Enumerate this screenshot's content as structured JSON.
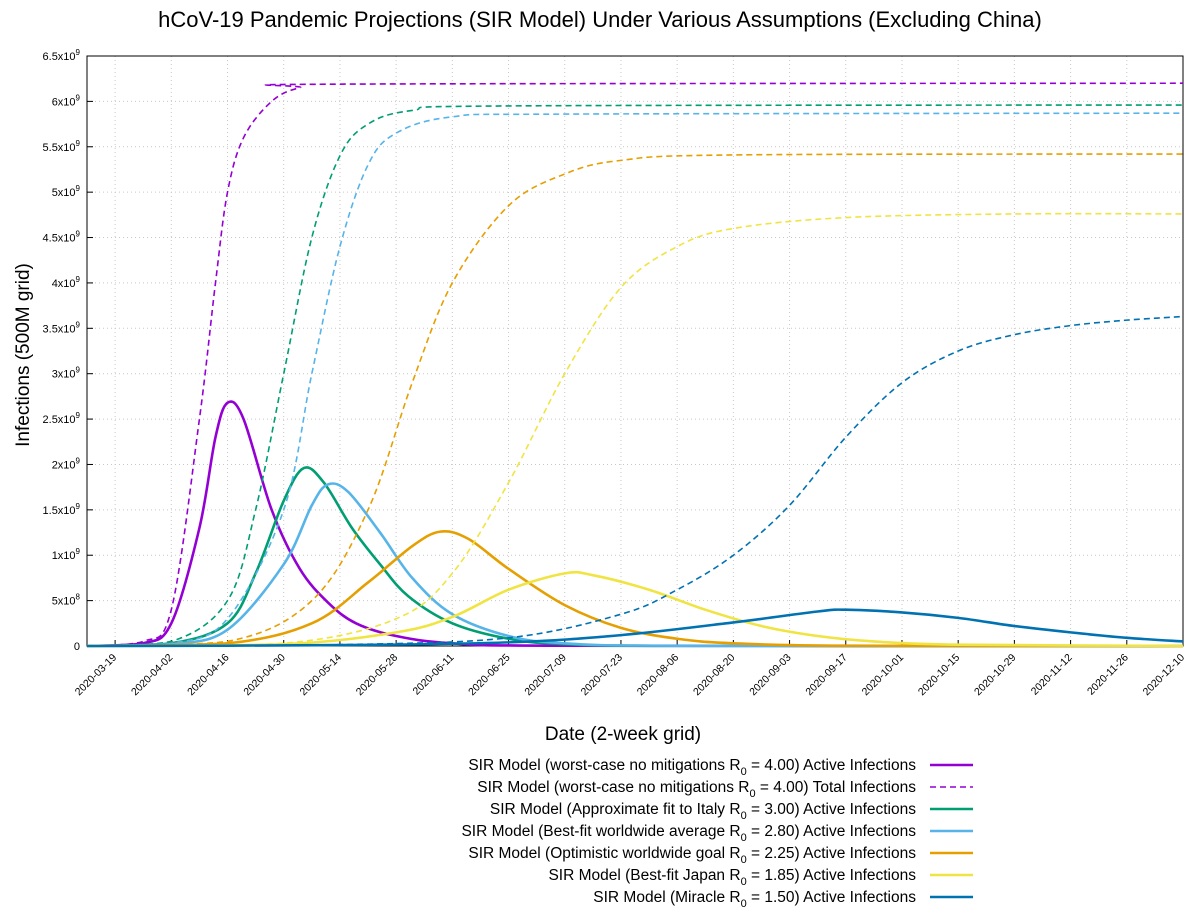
{
  "chart_data": {
    "type": "line",
    "title": "hCoV-19 Pandemic Projections (SIR Model) Under Various Assumptions (Excluding China)",
    "xlabel": "Date (2-week grid)",
    "ylabel": "Infections (500M grid)",
    "xlim": [
      "2020-03-12",
      "2020-12-10"
    ],
    "ylim": [
      0,
      6500000000
    ],
    "grid": true,
    "legend_position": "bottom-center",
    "y_ticks": [
      {
        "value": 0,
        "label": "0"
      },
      {
        "value": 500000000,
        "mant": "5x10",
        "exp": "8"
      },
      {
        "value": 1000000000,
        "mant": "1x10",
        "exp": "9"
      },
      {
        "value": 1500000000,
        "mant": "1.5x10",
        "exp": "9"
      },
      {
        "value": 2000000000,
        "mant": "2x10",
        "exp": "9"
      },
      {
        "value": 2500000000,
        "mant": "2.5x10",
        "exp": "9"
      },
      {
        "value": 3000000000,
        "mant": "3x10",
        "exp": "9"
      },
      {
        "value": 3500000000,
        "mant": "3.5x10",
        "exp": "9"
      },
      {
        "value": 4000000000,
        "mant": "4x10",
        "exp": "9"
      },
      {
        "value": 4500000000,
        "mant": "4.5x10",
        "exp": "9"
      },
      {
        "value": 5000000000,
        "mant": "5x10",
        "exp": "9"
      },
      {
        "value": 5500000000,
        "mant": "5.5x10",
        "exp": "9"
      },
      {
        "value": 6000000000,
        "mant": "6x10",
        "exp": "9"
      },
      {
        "value": 6500000000,
        "mant": "6.5x10",
        "exp": "9"
      }
    ],
    "x_ticks": [
      "2020-03-19",
      "2020-04-02",
      "2020-04-16",
      "2020-04-30",
      "2020-05-14",
      "2020-05-28",
      "2020-06-11",
      "2020-06-25",
      "2020-07-09",
      "2020-07-23",
      "2020-08-06",
      "2020-08-20",
      "2020-09-03",
      "2020-09-17",
      "2020-10-01",
      "2020-10-15",
      "2020-10-29",
      "2020-11-12",
      "2020-11-26",
      "2020-12-10"
    ],
    "series": [
      {
        "name": "worst-case-active",
        "color": "#9400d3",
        "dashed": false,
        "legend_pre": "SIR Model (worst-case no mitigations R",
        "legend_sub": "0",
        "legend_post": " = 4.00) Active Infections",
        "points": [
          [
            "2020-03-12",
            0
          ],
          [
            "2020-03-26",
            30000000
          ],
          [
            "2020-04-02",
            250000000
          ],
          [
            "2020-04-09",
            1300000000
          ],
          [
            "2020-04-13",
            2300000000
          ],
          [
            "2020-04-16",
            2680000000
          ],
          [
            "2020-04-20",
            2500000000
          ],
          [
            "2020-04-27",
            1500000000
          ],
          [
            "2020-05-04",
            850000000
          ],
          [
            "2020-05-11",
            480000000
          ],
          [
            "2020-05-18",
            250000000
          ],
          [
            "2020-05-28",
            110000000
          ],
          [
            "2020-06-11",
            30000000
          ],
          [
            "2020-07-09",
            3000000
          ],
          [
            "2020-12-10",
            0
          ]
        ]
      },
      {
        "name": "worst-case-total",
        "color": "#9400d3",
        "dashed": true,
        "legend_pre": "SIR Model (worst-case no mitigations R",
        "legend_sub": "0",
        "legend_post": " = 4.00) Total Infections",
        "points": [
          [
            "2020-03-12",
            0
          ],
          [
            "2020-03-26",
            50000000
          ],
          [
            "2020-04-02",
            400000000
          ],
          [
            "2020-04-09",
            2500000000
          ],
          [
            "2020-04-13",
            4000000000
          ],
          [
            "2020-04-16",
            5000000000
          ],
          [
            "2020-04-20",
            5600000000
          ],
          [
            "2020-04-27",
            6000000000
          ],
          [
            "2020-05-04",
            6150000000
          ],
          [
            "2020-05-14",
            6190000000
          ],
          [
            "2020-12-10",
            6200000000
          ]
        ]
      },
      {
        "name": "italy-active",
        "color": "#009e73",
        "dashed": false,
        "legend_pre": "SIR Model (Approximate fit to Italy R",
        "legend_sub": "0",
        "legend_post": " = 3.00) Active Infections",
        "points": [
          [
            "2020-03-12",
            0
          ],
          [
            "2020-04-02",
            30000000
          ],
          [
            "2020-04-16",
            250000000
          ],
          [
            "2020-04-23",
            800000000
          ],
          [
            "2020-04-30",
            1600000000
          ],
          [
            "2020-05-05",
            1960000000
          ],
          [
            "2020-05-10",
            1800000000
          ],
          [
            "2020-05-17",
            1300000000
          ],
          [
            "2020-05-24",
            900000000
          ],
          [
            "2020-05-31",
            550000000
          ],
          [
            "2020-06-11",
            250000000
          ],
          [
            "2020-06-25",
            80000000
          ],
          [
            "2020-07-09",
            20000000
          ],
          [
            "2020-08-06",
            2000000
          ],
          [
            "2020-12-10",
            0
          ]
        ]
      },
      {
        "name": "italy-total",
        "color": "#009e73",
        "dashed": true,
        "legend": null,
        "points": [
          [
            "2020-03-12",
            0
          ],
          [
            "2020-04-02",
            50000000
          ],
          [
            "2020-04-16",
            500000000
          ],
          [
            "2020-04-23",
            1500000000
          ],
          [
            "2020-04-30",
            3000000000
          ],
          [
            "2020-05-07",
            4500000000
          ],
          [
            "2020-05-14",
            5400000000
          ],
          [
            "2020-05-21",
            5750000000
          ],
          [
            "2020-06-01",
            5900000000
          ],
          [
            "2020-06-25",
            5950000000
          ],
          [
            "2020-12-10",
            5960000000
          ]
        ]
      },
      {
        "name": "worldwide-active",
        "color": "#56b4e9",
        "dashed": false,
        "legend_pre": "SIR Model (Best-fit worldwide average R",
        "legend_sub": "0",
        "legend_post": " = 2.80) Active Infections",
        "points": [
          [
            "2020-03-12",
            0
          ],
          [
            "2020-04-02",
            20000000
          ],
          [
            "2020-04-16",
            180000000
          ],
          [
            "2020-04-30",
            900000000
          ],
          [
            "2020-05-07",
            1550000000
          ],
          [
            "2020-05-11",
            1780000000
          ],
          [
            "2020-05-16",
            1700000000
          ],
          [
            "2020-05-24",
            1250000000
          ],
          [
            "2020-06-01",
            750000000
          ],
          [
            "2020-06-11",
            350000000
          ],
          [
            "2020-06-25",
            110000000
          ],
          [
            "2020-07-09",
            30000000
          ],
          [
            "2020-08-06",
            3000000
          ],
          [
            "2020-12-10",
            0
          ]
        ]
      },
      {
        "name": "worldwide-total",
        "color": "#56b4e9",
        "dashed": true,
        "legend": null,
        "points": [
          [
            "2020-03-12",
            0
          ],
          [
            "2020-04-02",
            30000000
          ],
          [
            "2020-04-16",
            300000000
          ],
          [
            "2020-04-30",
            1500000000
          ],
          [
            "2020-05-07",
            3000000000
          ],
          [
            "2020-05-14",
            4400000000
          ],
          [
            "2020-05-21",
            5300000000
          ],
          [
            "2020-05-28",
            5650000000
          ],
          [
            "2020-06-11",
            5830000000
          ],
          [
            "2020-07-09",
            5860000000
          ],
          [
            "2020-12-10",
            5870000000
          ]
        ]
      },
      {
        "name": "optimistic-active",
        "color": "#e69f00",
        "dashed": false,
        "legend_pre": "SIR Model (Optimistic worldwide goal R",
        "legend_sub": "0",
        "legend_post": " = 2.25) Active Infections",
        "points": [
          [
            "2020-03-12",
            0
          ],
          [
            "2020-04-16",
            30000000
          ],
          [
            "2020-05-07",
            250000000
          ],
          [
            "2020-05-21",
            700000000
          ],
          [
            "2020-06-01",
            1100000000
          ],
          [
            "2020-06-08",
            1260000000
          ],
          [
            "2020-06-15",
            1180000000
          ],
          [
            "2020-06-25",
            850000000
          ],
          [
            "2020-07-09",
            450000000
          ],
          [
            "2020-07-23",
            200000000
          ],
          [
            "2020-08-06",
            80000000
          ],
          [
            "2020-08-20",
            30000000
          ],
          [
            "2020-09-17",
            3000000
          ],
          [
            "2020-12-10",
            0
          ]
        ]
      },
      {
        "name": "optimistic-total",
        "color": "#e69f00",
        "dashed": true,
        "legend": null,
        "points": [
          [
            "2020-03-12",
            0
          ],
          [
            "2020-04-16",
            50000000
          ],
          [
            "2020-05-07",
            500000000
          ],
          [
            "2020-05-21",
            1500000000
          ],
          [
            "2020-06-01",
            2900000000
          ],
          [
            "2020-06-11",
            4000000000
          ],
          [
            "2020-06-25",
            4850000000
          ],
          [
            "2020-07-09",
            5200000000
          ],
          [
            "2020-07-23",
            5350000000
          ],
          [
            "2020-08-20",
            5410000000
          ],
          [
            "2020-12-10",
            5420000000
          ]
        ]
      },
      {
        "name": "japan-active",
        "color": "#f0e442",
        "dashed": false,
        "legend_pre": "SIR Model (Best-fit Japan R",
        "legend_sub": "0",
        "legend_post": " = 1.85) Active Infections",
        "points": [
          [
            "2020-03-12",
            0
          ],
          [
            "2020-04-30",
            20000000
          ],
          [
            "2020-05-28",
            150000000
          ],
          [
            "2020-06-11",
            320000000
          ],
          [
            "2020-06-25",
            620000000
          ],
          [
            "2020-07-09",
            800000000
          ],
          [
            "2020-07-16",
            780000000
          ],
          [
            "2020-07-30",
            620000000
          ],
          [
            "2020-08-13",
            400000000
          ],
          [
            "2020-08-27",
            220000000
          ],
          [
            "2020-09-10",
            110000000
          ],
          [
            "2020-09-24",
            50000000
          ],
          [
            "2020-10-15",
            15000000
          ],
          [
            "2020-12-10",
            1000000
          ]
        ]
      },
      {
        "name": "japan-total",
        "color": "#f0e442",
        "dashed": true,
        "legend": null,
        "points": [
          [
            "2020-03-12",
            0
          ],
          [
            "2020-04-30",
            30000000
          ],
          [
            "2020-05-28",
            300000000
          ],
          [
            "2020-06-11",
            800000000
          ],
          [
            "2020-06-25",
            1800000000
          ],
          [
            "2020-07-09",
            3000000000
          ],
          [
            "2020-07-23",
            3950000000
          ],
          [
            "2020-08-06",
            4400000000
          ],
          [
            "2020-08-20",
            4600000000
          ],
          [
            "2020-09-17",
            4720000000
          ],
          [
            "2020-10-29",
            4760000000
          ],
          [
            "2020-12-10",
            4760000000
          ]
        ]
      },
      {
        "name": "miracle-active",
        "color": "#0072b2",
        "dashed": false,
        "legend_pre": "SIR Model (Miracle R",
        "legend_sub": "0",
        "legend_post": " = 1.50) Active Infections",
        "points": [
          [
            "2020-03-12",
            0
          ],
          [
            "2020-05-14",
            10000000
          ],
          [
            "2020-06-25",
            40000000
          ],
          [
            "2020-07-23",
            120000000
          ],
          [
            "2020-08-20",
            260000000
          ],
          [
            "2020-09-10",
            380000000
          ],
          [
            "2020-09-17",
            400000000
          ],
          [
            "2020-10-01",
            370000000
          ],
          [
            "2020-10-15",
            310000000
          ],
          [
            "2020-10-29",
            220000000
          ],
          [
            "2020-11-12",
            150000000
          ],
          [
            "2020-11-26",
            90000000
          ],
          [
            "2020-12-10",
            50000000
          ]
        ]
      },
      {
        "name": "miracle-total",
        "color": "#0072b2",
        "dashed": true,
        "legend": null,
        "points": [
          [
            "2020-03-12",
            0
          ],
          [
            "2020-05-14",
            15000000
          ],
          [
            "2020-06-25",
            90000000
          ],
          [
            "2020-07-23",
            350000000
          ],
          [
            "2020-08-06",
            620000000
          ],
          [
            "2020-08-20",
            1000000000
          ],
          [
            "2020-09-03",
            1550000000
          ],
          [
            "2020-09-17",
            2300000000
          ],
          [
            "2020-10-01",
            2900000000
          ],
          [
            "2020-10-15",
            3250000000
          ],
          [
            "2020-10-29",
            3430000000
          ],
          [
            "2020-11-12",
            3530000000
          ],
          [
            "2020-11-26",
            3590000000
          ],
          [
            "2020-12-10",
            3630000000
          ]
        ]
      }
    ]
  }
}
